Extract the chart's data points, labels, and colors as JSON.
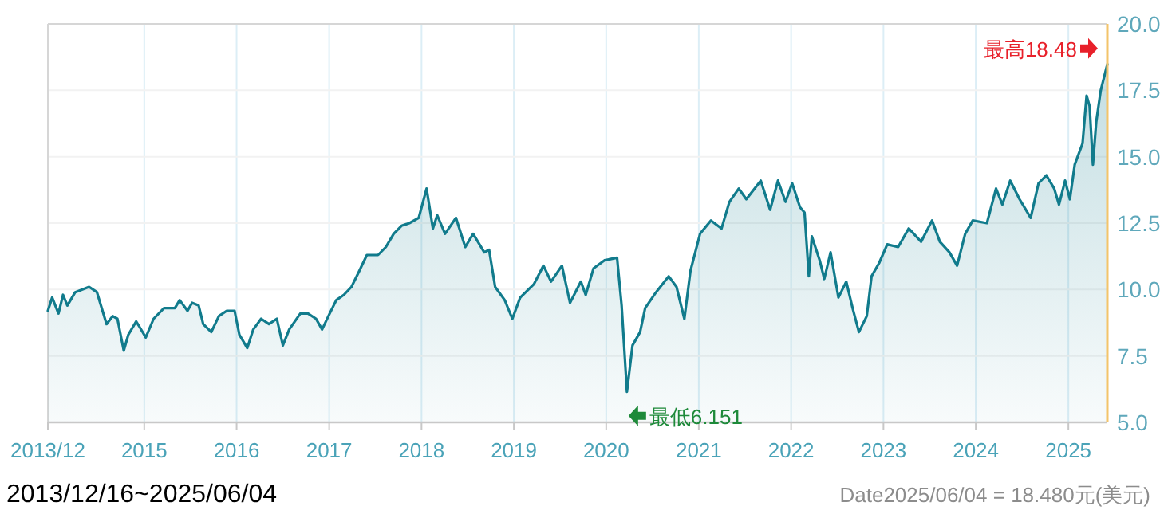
{
  "chart_data": {
    "type": "area",
    "grid": true,
    "xlim": [
      "2013-12-16",
      "2025-06-04"
    ],
    "xticks": [
      {
        "value": "2013-12-16",
        "label": "2013/12"
      },
      {
        "value": "2015-01-01",
        "label": "2015"
      },
      {
        "value": "2016-01-01",
        "label": "2016"
      },
      {
        "value": "2017-01-01",
        "label": "2017"
      },
      {
        "value": "2018-01-01",
        "label": "2018"
      },
      {
        "value": "2019-01-01",
        "label": "2019"
      },
      {
        "value": "2020-01-01",
        "label": "2020"
      },
      {
        "value": "2021-01-01",
        "label": "2021"
      },
      {
        "value": "2022-01-01",
        "label": "2022"
      },
      {
        "value": "2023-01-01",
        "label": "2023"
      },
      {
        "value": "2024-01-01",
        "label": "2024"
      },
      {
        "value": "2025-01-01",
        "label": "2025"
      }
    ],
    "ylim": [
      5,
      20
    ],
    "yticks": [
      {
        "value": 5,
        "label": "5.0"
      },
      {
        "value": 7.5,
        "label": "7.5"
      },
      {
        "value": 10,
        "label": "10.0"
      },
      {
        "value": 12.5,
        "label": "12.5"
      },
      {
        "value": 15,
        "label": "15.0"
      },
      {
        "value": 17.5,
        "label": "17.5"
      },
      {
        "value": 20,
        "label": "20.0"
      }
    ],
    "x": [
      "2013-12-16",
      "2014-01-02",
      "2014-01-27",
      "2014-02-14",
      "2014-03-03",
      "2014-04-03",
      "2014-05-28",
      "2014-06-28",
      "2014-07-17",
      "2014-08-05",
      "2014-08-29",
      "2014-09-17",
      "2014-10-12",
      "2014-10-30",
      "2014-11-30",
      "2014-12-13",
      "2015-01-07",
      "2015-02-07",
      "2015-03-20",
      "2015-05-02",
      "2015-05-21",
      "2015-06-21",
      "2015-07-09",
      "2015-08-04",
      "2015-08-22",
      "2015-09-23",
      "2015-10-23",
      "2015-11-23",
      "2015-12-24",
      "2016-01-12",
      "2016-02-12",
      "2016-03-07",
      "2016-04-07",
      "2016-05-08",
      "2016-06-08",
      "2016-07-02",
      "2016-07-27",
      "2016-09-09",
      "2016-10-09",
      "2016-11-10",
      "2016-12-04",
      "2016-12-29",
      "2017-01-29",
      "2017-02-28",
      "2017-03-30",
      "2017-04-30",
      "2017-05-30",
      "2017-07-13",
      "2017-08-13",
      "2017-09-13",
      "2017-10-14",
      "2017-11-14",
      "2017-12-21",
      "2018-01-21",
      "2018-02-15",
      "2018-03-04",
      "2018-04-04",
      "2018-05-17",
      "2018-06-23",
      "2018-07-24",
      "2018-09-06",
      "2018-09-25",
      "2018-10-19",
      "2018-11-26",
      "2018-12-26",
      "2019-01-26",
      "2019-03-21",
      "2019-04-28",
      "2019-05-28",
      "2019-07-10",
      "2019-08-11",
      "2019-09-23",
      "2019-10-12",
      "2019-11-12",
      "2019-12-25",
      "2020-02-13",
      "2020-03-02",
      "2020-03-23",
      "2020-04-14",
      "2020-05-14",
      "2020-06-03",
      "2020-07-16",
      "2020-09-04",
      "2020-10-05",
      "2020-11-05",
      "2020-11-29",
      "2021-01-06",
      "2021-02-18",
      "2021-04-01",
      "2021-05-02",
      "2021-06-08",
      "2021-07-08",
      "2021-09-03",
      "2021-10-10",
      "2021-11-10",
      "2021-12-10",
      "2022-01-05",
      "2022-02-05",
      "2022-02-23",
      "2022-03-12",
      "2022-03-24",
      "2022-04-24",
      "2022-05-12",
      "2022-06-06",
      "2022-07-07",
      "2022-08-07",
      "2022-09-01",
      "2022-09-26",
      "2022-10-27",
      "2022-11-15",
      "2022-12-15",
      "2023-01-16",
      "2023-02-28",
      "2023-04-11",
      "2023-05-30",
      "2023-07-12",
      "2023-08-12",
      "2023-09-19",
      "2023-10-19",
      "2023-11-20",
      "2023-12-20",
      "2024-02-14",
      "2024-03-21",
      "2024-04-15",
      "2024-05-16",
      "2024-06-22",
      "2024-08-05",
      "2024-09-05",
      "2024-10-06",
      "2024-11-06",
      "2024-11-25",
      "2024-12-19",
      "2025-01-07",
      "2025-01-26",
      "2025-02-26",
      "2025-03-14",
      "2025-03-26",
      "2025-04-08",
      "2025-04-21",
      "2025-05-09",
      "2025-06-04"
    ],
    "series": [
      {
        "color": "#117b8c",
        "values": [
          9.2,
          9.7,
          9.1,
          9.8,
          9.4,
          9.9,
          10.1,
          9.9,
          9.3,
          8.7,
          9.0,
          8.9,
          7.7,
          8.3,
          8.8,
          8.6,
          8.2,
          8.9,
          9.3,
          9.3,
          9.6,
          9.2,
          9.5,
          9.4,
          8.7,
          8.4,
          9.0,
          9.2,
          9.2,
          8.3,
          7.8,
          8.5,
          8.9,
          8.7,
          8.9,
          7.9,
          8.5,
          9.1,
          9.1,
          8.9,
          8.5,
          9.0,
          9.6,
          9.8,
          10.1,
          10.7,
          11.3,
          11.3,
          11.6,
          12.1,
          12.4,
          12.5,
          12.7,
          13.8,
          12.3,
          12.8,
          12.1,
          12.7,
          11.6,
          12.1,
          11.4,
          11.5,
          10.1,
          9.6,
          8.9,
          9.7,
          10.2,
          10.9,
          10.3,
          10.9,
          9.5,
          10.3,
          9.8,
          10.8,
          11.1,
          11.2,
          9.4,
          6.151,
          7.9,
          8.4,
          9.3,
          9.9,
          10.5,
          10.1,
          8.9,
          10.7,
          12.1,
          12.6,
          12.3,
          13.3,
          13.8,
          13.4,
          14.1,
          13.0,
          14.1,
          13.3,
          14.0,
          13.1,
          12.9,
          10.5,
          12.0,
          11.1,
          10.4,
          11.4,
          9.7,
          10.3,
          9.3,
          8.4,
          9.0,
          10.5,
          11.0,
          11.7,
          11.6,
          12.3,
          11.8,
          12.6,
          11.8,
          11.4,
          10.9,
          12.1,
          12.6,
          12.5,
          13.8,
          13.2,
          14.1,
          13.4,
          12.7,
          14.0,
          14.3,
          13.8,
          13.2,
          14.1,
          13.4,
          14.7,
          15.5,
          17.3,
          16.9,
          14.7,
          16.3,
          17.5,
          18.48
        ]
      }
    ],
    "annotations": [
      {
        "text": "最高18.48",
        "x": "2025-06-04",
        "y": 18.48
      },
      {
        "text": "最低6.151",
        "x": "2020-03-23",
        "y": 6.151
      },
      "2013/12/16~2025/06/04",
      "Date2025/06/04 = 18.480元(美元)"
    ]
  }
}
